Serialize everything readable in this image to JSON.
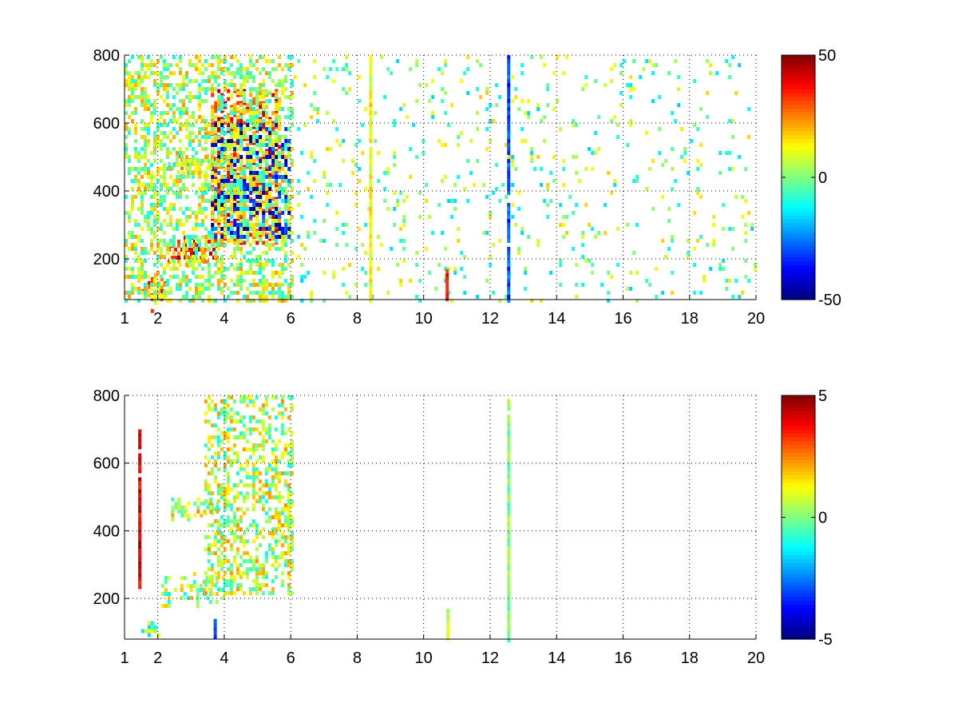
{
  "figure": {
    "background": "#ffffff"
  },
  "chart_data": [
    {
      "type": "heatmap",
      "title": "",
      "xlabel": "",
      "ylabel": "",
      "xlim": [
        1,
        20
      ],
      "ylim": [
        80,
        800
      ],
      "x_ticks": [
        1,
        2,
        4,
        6,
        8,
        10,
        12,
        14,
        16,
        18,
        20
      ],
      "x_tick_labels": [
        "1",
        "2",
        "4",
        "6",
        "8",
        "10",
        "12",
        "14",
        "16",
        "18",
        "20"
      ],
      "y_ticks": [
        200,
        400,
        600,
        800
      ],
      "y_tick_labels": [
        "200",
        "400",
        "600",
        "800"
      ],
      "grid": true,
      "grid_style": "dotted",
      "colormap": "jet",
      "clim": [
        -50,
        50
      ],
      "colorbar": {
        "ticks": [
          50,
          0,
          -50
        ],
        "labels": [
          "50",
          "0",
          "-50"
        ],
        "placement": "right"
      },
      "features": [
        {
          "x_range": [
            2.2,
            3.8
          ],
          "y_center": 230,
          "y_spread": 25,
          "value": 35
        },
        {
          "x_range": [
            3.6,
            5.7
          ],
          "y_range": [
            250,
            700
          ],
          "value": 30
        },
        {
          "x_range": [
            3.6,
            6.0
          ],
          "y_range": [
            260,
            600
          ],
          "value": -40
        },
        {
          "x_range": [
            2.3,
            3.8
          ],
          "y_center": 480,
          "y_spread": 20,
          "value": 12
        },
        {
          "x_range": [
            3.4,
            3.8
          ],
          "y_center": 570,
          "y_spread": 20,
          "value": 30
        },
        {
          "x_range": [
            1.5,
            2.2
          ],
          "y_center": 110,
          "y_spread": 30,
          "value": 20
        },
        {
          "x_range": [
            1.0,
            6.0
          ],
          "y_range": [
            80,
            800
          ],
          "value": 5
        },
        {
          "x_range": [
            6.0,
            20.0
          ],
          "y_range": [
            80,
            800
          ],
          "value": 0
        },
        {
          "x": 8.4,
          "y_range": [
            80,
            800
          ],
          "value": 12
        },
        {
          "x": 10.7,
          "y_range": [
            80,
            170
          ],
          "value": 35
        },
        {
          "x": 12.55,
          "y_range": [
            80,
            800
          ],
          "value": -30
        }
      ]
    },
    {
      "type": "heatmap",
      "title": "",
      "xlabel": "",
      "ylabel": "",
      "xlim": [
        1,
        20
      ],
      "ylim": [
        80,
        800
      ],
      "x_ticks": [
        1,
        2,
        4,
        6,
        8,
        10,
        12,
        14,
        16,
        18,
        20
      ],
      "x_tick_labels": [
        "1",
        "2",
        "4",
        "6",
        "8",
        "10",
        "12",
        "14",
        "16",
        "18",
        "20"
      ],
      "y_ticks": [
        200,
        400,
        600,
        800
      ],
      "y_tick_labels": [
        "200",
        "400",
        "600",
        "800"
      ],
      "grid": true,
      "grid_style": "dotted",
      "colormap": "jet",
      "clim": [
        -5,
        5
      ],
      "colorbar": {
        "ticks": [
          5,
          0,
          -5
        ],
        "labels": [
          "5",
          "0",
          "-5"
        ],
        "placement": "right"
      },
      "features": [
        {
          "x_range": [
            2.1,
            4.0
          ],
          "y_center": 230,
          "y_spread": 30,
          "value": 0.3
        },
        {
          "x_range": [
            3.4,
            6.0
          ],
          "y_range": [
            220,
            800
          ],
          "value": 0.6
        },
        {
          "x_range": [
            2.4,
            3.8
          ],
          "y_center": 470,
          "y_spread": 20,
          "value": 0.8
        },
        {
          "x_range": [
            1.5,
            2.0
          ],
          "y_center": 115,
          "y_spread": 15,
          "value": -0.5
        },
        {
          "x": 1.45,
          "y_range": [
            230,
            700
          ],
          "value": 4
        },
        {
          "x": 3.72,
          "y_range": [
            85,
            140
          ],
          "value": -3
        },
        {
          "x": 10.72,
          "y_range": [
            80,
            170
          ],
          "value": 0.5
        },
        {
          "x": 12.55,
          "y_range": [
            80,
            790
          ],
          "value": 0
        }
      ]
    }
  ]
}
